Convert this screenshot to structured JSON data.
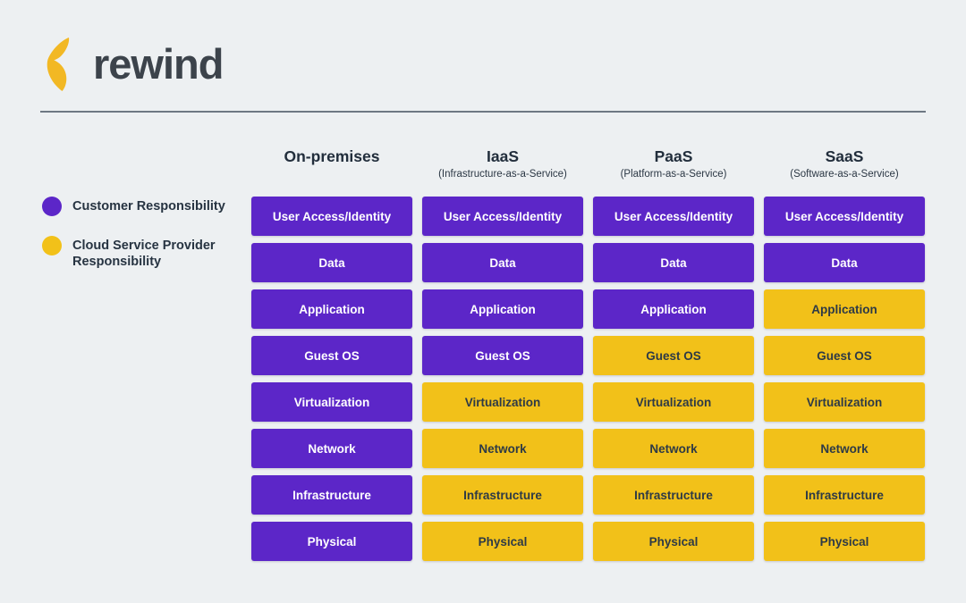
{
  "logo": {
    "wordmark": "rewind",
    "icon": "rewind-chevron-icon",
    "icon_color": "#F2B824",
    "text_color": "#3C434B"
  },
  "colors": {
    "background": "#EDF0F2",
    "customer": "#5C26C8",
    "provider": "#F2C119",
    "customer_text": "#FFFFFF",
    "provider_text": "#2E3A46",
    "divider": "#6E7883",
    "heading_text": "#222E3C"
  },
  "legend": {
    "items": [
      {
        "label": "Customer Responsibility",
        "owner": "customer",
        "color": "#5C26C8"
      },
      {
        "label": "Cloud Service Provider Responsibility",
        "owner": "provider",
        "color": "#F2C119"
      }
    ]
  },
  "matrix": {
    "row_labels": [
      "User Access/Identity",
      "Data",
      "Application",
      "Guest OS",
      "Virtualization",
      "Network",
      "Infrastructure",
      "Physical"
    ],
    "columns": [
      {
        "title": "On-premises",
        "subtitle": "",
        "owners": [
          "customer",
          "customer",
          "customer",
          "customer",
          "customer",
          "customer",
          "customer",
          "customer"
        ]
      },
      {
        "title": "IaaS",
        "subtitle": "(Infrastructure-as-a-Service)",
        "owners": [
          "customer",
          "customer",
          "customer",
          "customer",
          "provider",
          "provider",
          "provider",
          "provider"
        ]
      },
      {
        "title": "PaaS",
        "subtitle": "(Platform-as-a-Service)",
        "owners": [
          "customer",
          "customer",
          "customer",
          "provider",
          "provider",
          "provider",
          "provider",
          "provider"
        ]
      },
      {
        "title": "SaaS",
        "subtitle": "(Software-as-a-Service)",
        "owners": [
          "customer",
          "customer",
          "provider",
          "provider",
          "provider",
          "provider",
          "provider",
          "provider"
        ]
      }
    ]
  }
}
